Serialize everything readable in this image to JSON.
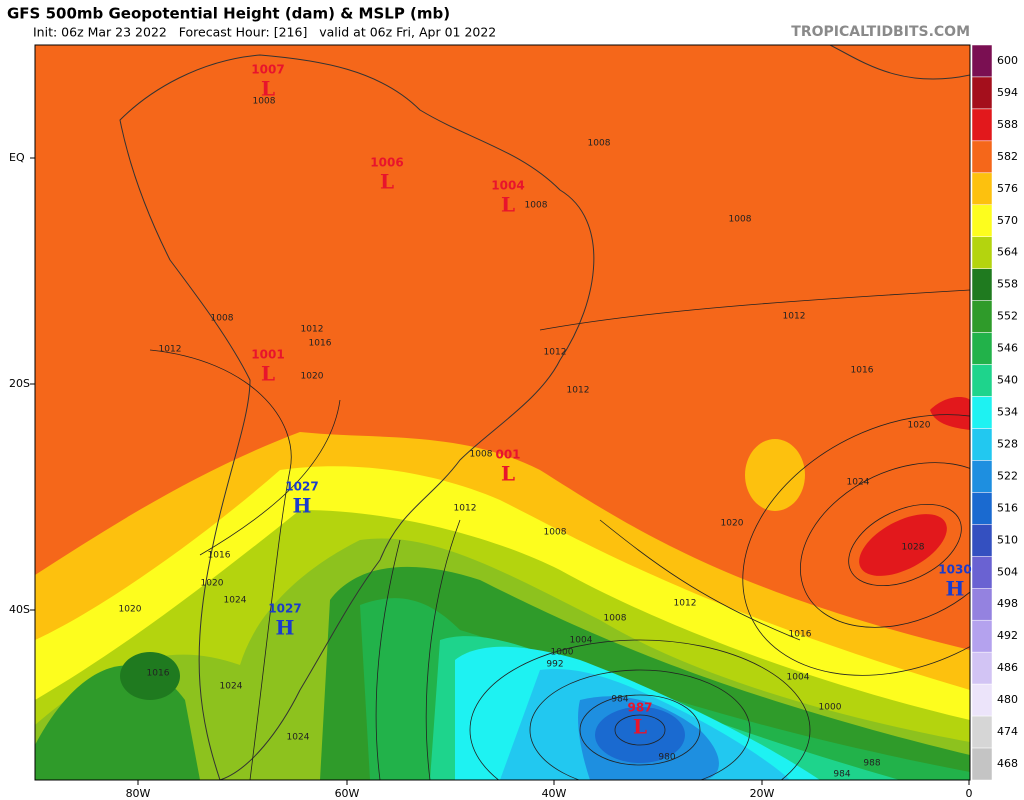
{
  "header": {
    "title": "GFS 500mb Geopotential Height (dam) & MSLP (mb)",
    "subtitle": "Init: 06z Mar 23 2022   Forecast Hour: [216]   valid at 06z Fri, Apr 01 2022",
    "source": "TROPICALTIDBITS.COM"
  },
  "axes": {
    "lat_labels": [
      "EQ",
      "20S",
      "40S"
    ],
    "lon_labels": [
      "80W",
      "60W",
      "40W",
      "20W",
      "0"
    ]
  },
  "colorbar": {
    "levels": [
      {
        "value": 600,
        "color": "#7a0f52"
      },
      {
        "value": 594,
        "color": "#a40f1c"
      },
      {
        "value": 588,
        "color": "#e2181c"
      },
      {
        "value": 582,
        "color": "#f5671a"
      },
      {
        "value": 576,
        "color": "#fdc10e"
      },
      {
        "value": 570,
        "color": "#fdfd1e"
      },
      {
        "value": 564,
        "color": "#b4d40e"
      },
      {
        "value": 558,
        "color": "#1f7a1f"
      },
      {
        "value": 552,
        "color": "#2f9b2a"
      },
      {
        "value": 546,
        "color": "#22b24a"
      },
      {
        "value": 540,
        "color": "#1ed48c"
      },
      {
        "value": 534,
        "color": "#1ef2f2"
      },
      {
        "value": 528,
        "color": "#22c8f0"
      },
      {
        "value": 522,
        "color": "#1e8fe0"
      },
      {
        "value": 516,
        "color": "#1a6ad0"
      },
      {
        "value": 510,
        "color": "#3450c0"
      },
      {
        "value": 504,
        "color": "#6a62d2"
      },
      {
        "value": 498,
        "color": "#9482e0"
      },
      {
        "value": 492,
        "color": "#b4a2ee"
      },
      {
        "value": 486,
        "color": "#d2c4f4"
      },
      {
        "value": 480,
        "color": "#ece4fa"
      },
      {
        "value": 474,
        "color": "#d6d6d6"
      },
      {
        "value": 468,
        "color": "#c4c4c4"
      }
    ]
  },
  "centers": [
    {
      "type": "L",
      "pressure": "1007"
    },
    {
      "type": "L",
      "pressure": "1006"
    },
    {
      "type": "L",
      "pressure": "1004"
    },
    {
      "type": "L",
      "pressure": "1001"
    },
    {
      "type": "L",
      "pressure": "001"
    },
    {
      "type": "H",
      "pressure": "1027"
    },
    {
      "type": "H",
      "pressure": "1027"
    },
    {
      "type": "H",
      "pressure": "1030"
    },
    {
      "type": "L",
      "pressure": "987"
    }
  ],
  "isobar_labels": [
    "1008",
    "1008",
    "1008",
    "1008",
    "1008",
    "1008",
    "1008",
    "1008",
    "1012",
    "1012",
    "1012",
    "1012",
    "1012",
    "1012",
    "1012",
    "1016",
    "1016",
    "1016",
    "1016",
    "1016",
    "1020",
    "1020",
    "1020",
    "1020",
    "1020",
    "1024",
    "1024",
    "1024",
    "1024",
    "1028",
    "1004",
    "1004",
    "1000",
    "1000",
    "992",
    "984",
    "984",
    "980",
    "988"
  ]
}
